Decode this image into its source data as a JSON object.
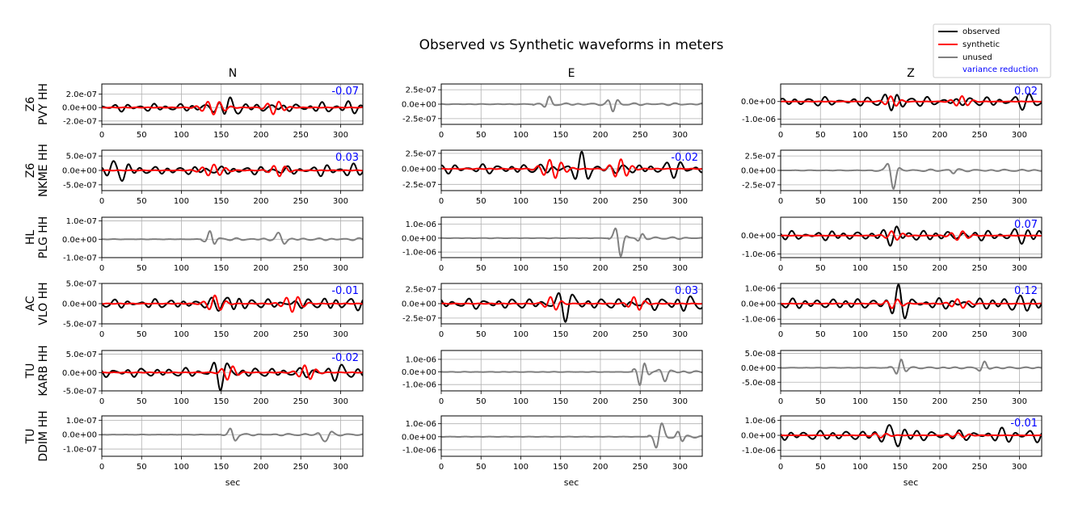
{
  "chart_data": {
    "type": "line",
    "title": "Observed vs Synthetic waveforms in meters",
    "xlabel": "sec",
    "xlim": [
      0,
      328
    ],
    "xticks": [
      "0",
      "50",
      "100",
      "150",
      "200",
      "250",
      "300"
    ],
    "columns": [
      "N",
      "E",
      "Z"
    ],
    "grid": true,
    "legend": {
      "placement": "top-right",
      "entries": [
        {
          "label": "observed",
          "color": "#000000"
        },
        {
          "label": "synthetic",
          "color": "#ff0000"
        },
        {
          "label": "unused",
          "color": "#808080"
        },
        {
          "label": "variance reduction",
          "color": "#0000ff"
        }
      ]
    },
    "colors": {
      "observed": "#000000",
      "synthetic": "#ff0000",
      "unused": "#808080",
      "vr": "#0000ff",
      "grid": "#b0b0b0"
    },
    "rows": [
      {
        "label1": "Z6",
        "label2": "PVY HH"
      },
      {
        "label1": "Z6",
        "label2": "NKME HH"
      },
      {
        "label1": "HL",
        "label2": "PLG HH"
      },
      {
        "label1": "AC",
        "label2": "VLO HH"
      },
      {
        "label1": "TU",
        "label2": "KARB HH"
      },
      {
        "label1": "TU",
        "label2": "DDIM HH"
      }
    ],
    "panels": [
      [
        {
          "used": true,
          "vr": "-0.07",
          "ylim": [
            -2.5e-07,
            3.5e-07
          ],
          "yticks": [
            2e-07,
            0,
            -2e-07
          ],
          "yticklabels": [
            "2.0e-07",
            "0.0e+00",
            "-2.0e-07"
          ],
          "onset": 0,
          "amp": 2e-07,
          "burst": 160,
          "syn_amp": 1e-07,
          "syn_windows": [
            [
              110,
              170
            ],
            [
              195,
              240
            ]
          ]
        },
        {
          "used": true,
          "vr": "0.03",
          "ylim": [
            -7e-07,
            7e-07
          ],
          "yticks": [
            5e-07,
            0,
            -5e-07
          ],
          "yticklabels": [
            "5.0e-07",
            "0.0e+00",
            "-5.0e-07"
          ],
          "onset": 0,
          "amp": 5e-07,
          "burst": 20,
          "syn_amp": 2e-07,
          "syn_windows": [
            [
              110,
              170
            ],
            [
              200,
              245
            ]
          ]
        },
        {
          "used": false,
          "ylim": [
            -1e-07,
            1.2e-07
          ],
          "yticks": [
            1e-07,
            0,
            -1e-07
          ],
          "yticklabels": [
            "1.0e-07",
            "0.0e+00",
            "-1.0e-07"
          ],
          "onset": 125,
          "amp": 1.2e-07,
          "burst": 140,
          "burst2": 225
        },
        {
          "used": true,
          "vr": "-0.01",
          "ylim": [
            -5e-07,
            5e-07
          ],
          "yticks": [
            5e-07,
            0,
            -5e-07
          ],
          "yticklabels": [
            "5.0e-07",
            "0.0e+00",
            "-5.0e-07"
          ],
          "onset": 0,
          "amp": 4e-07,
          "burst": 160,
          "syn_amp": 2e-07,
          "syn_windows": [
            [
              120,
              165
            ],
            [
              215,
              265
            ]
          ]
        },
        {
          "used": true,
          "vr": "-0.02",
          "ylim": [
            -5e-07,
            6e-07
          ],
          "yticks": [
            5e-07,
            0,
            -5e-07
          ],
          "yticklabels": [
            "5.0e-07",
            "0.0e+00",
            "-5.0e-07"
          ],
          "onset": 0,
          "amp": 4.5e-07,
          "burst": 150,
          "syn_amp": 2e-07,
          "syn_windows": [
            [
              140,
              180
            ],
            [
              235,
              280
            ]
          ]
        },
        {
          "used": false,
          "ylim": [
            -1.5e-07,
            1.3e-07
          ],
          "yticks": [
            1e-07,
            0,
            -1e-07
          ],
          "yticklabels": [
            "1.0e-07",
            "0.0e+00",
            "-1.0e-07"
          ],
          "onset": 150,
          "amp": 1.3e-07,
          "burst": 280,
          "burst2": 165
        }
      ],
      [
        {
          "used": false,
          "ylim": [
            -3.5e-07,
            3.5e-07
          ],
          "yticks": [
            2.5e-07,
            0,
            -2.5e-07
          ],
          "yticklabels": [
            "2.5e-07",
            "0.0e+00",
            "-2.5e-07"
          ],
          "onset": 115,
          "amp": 3.5e-07,
          "burst": 218,
          "burst2": 135
        },
        {
          "used": true,
          "vr": "-0.02",
          "ylim": [
            -3.5e-07,
            3e-07
          ],
          "yticks": [
            2.5e-07,
            0,
            -2.5e-07
          ],
          "yticklabels": [
            "2.5e-07",
            "0.0e+00",
            "-2.5e-07"
          ],
          "onset": 0,
          "amp": 2.7e-07,
          "burst": 180,
          "syn_amp": 1.5e-07,
          "syn_windows": [
            [
              110,
              170
            ],
            [
              200,
              250
            ]
          ]
        },
        {
          "used": false,
          "ylim": [
            -1.4e-06,
            1.5e-06
          ],
          "yticks": [
            1e-06,
            0,
            -1e-06
          ],
          "yticklabels": [
            "1.0e-06",
            "0.0e+00",
            "-1.0e-06"
          ],
          "onset": 210,
          "amp": 1.5e-06,
          "burst": 225,
          "burst2": 250
        },
        {
          "used": true,
          "vr": "0.03",
          "ylim": [
            -3.5e-07,
            3.5e-07
          ],
          "yticks": [
            2.5e-07,
            0,
            -2.5e-07
          ],
          "yticklabels": [
            "2.5e-07",
            "0.0e+00",
            "-2.5e-07"
          ],
          "onset": 0,
          "amp": 3.2e-07,
          "burst": 160,
          "syn_amp": 1.2e-07,
          "syn_windows": [
            [
              120,
              160
            ],
            [
              225,
              265
            ]
          ]
        },
        {
          "used": false,
          "ylim": [
            -1.5e-06,
            1.7e-06
          ],
          "yticks": [
            1e-06,
            0,
            -1e-06
          ],
          "yticklabels": [
            "1.0e-06",
            "0.0e+00",
            "-1.0e-06"
          ],
          "onset": 240,
          "amp": 1.7e-06,
          "burst": 253,
          "burst2": 280
        },
        {
          "used": false,
          "ylim": [
            -1.5e-06,
            1.6e-06
          ],
          "yticks": [
            1e-06,
            0,
            -1e-06
          ],
          "yticklabels": [
            "1.0e-06",
            "0.0e+00",
            "-1.0e-06"
          ],
          "onset": 260,
          "amp": 1.6e-06,
          "burst": 275,
          "burst2": 300
        }
      ],
      [
        {
          "used": true,
          "vr": "0.02",
          "ylim": [
            -1.3e-06,
            1e-06
          ],
          "yticks": [
            0,
            -1e-06
          ],
          "yticklabels": [
            "0.0e+00",
            "-1.0e-06"
          ],
          "onset": 0,
          "amp": 9e-07,
          "burst": 145,
          "syn_amp": 3e-07,
          "syn_windows": [
            [
              120,
              160
            ],
            [
              205,
              250
            ]
          ]
        },
        {
          "used": false,
          "ylim": [
            -3.5e-07,
            3.5e-07
          ],
          "yticks": [
            2.5e-07,
            0,
            -2.5e-07
          ],
          "yticklabels": [
            "2.5e-07",
            "0.0e+00",
            "-2.5e-07"
          ],
          "onset": 115,
          "amp": 3.5e-07,
          "burst": 140,
          "burst2": 215
        },
        {
          "used": true,
          "vr": "0.07",
          "ylim": [
            -1.2e-06,
            1e-06
          ],
          "yticks": [
            0,
            -1e-06
          ],
          "yticklabels": [
            "0.0e+00",
            "-1.0e-06"
          ],
          "onset": 0,
          "amp": 9e-07,
          "burst": 150,
          "syn_amp": 2.5e-07,
          "syn_windows": [
            [
              120,
              165
            ],
            [
              200,
              250
            ]
          ]
        },
        {
          "used": true,
          "vr": "0.12",
          "ylim": [
            -1.3e-06,
            1.3e-06
          ],
          "yticks": [
            1e-06,
            0,
            -1e-06
          ],
          "yticklabels": [
            "1.0e-06",
            "0.0e+00",
            "-1.0e-06"
          ],
          "onset": 0,
          "amp": 1.2e-06,
          "burst": 150,
          "syn_amp": 3e-07,
          "syn_windows": [
            [
              120,
              165
            ],
            [
              200,
              250
            ]
          ]
        },
        {
          "used": false,
          "ylim": [
            -8e-08,
            6e-08
          ],
          "yticks": [
            5e-08,
            0,
            -5e-08
          ],
          "yticklabels": [
            "5.0e-08",
            "0.0e+00",
            "-5.0e-08"
          ],
          "onset": 135,
          "amp": 6e-08,
          "burst": 150,
          "burst2": 255
        },
        {
          "used": true,
          "vr": "-0.01",
          "ylim": [
            -1.4e-06,
            1.3e-06
          ],
          "yticks": [
            1e-06,
            0,
            -1e-06
          ],
          "yticklabels": [
            "1.0e-06",
            "0.0e+00",
            "-1.0e-06"
          ],
          "onset": 0,
          "amp": 1.2e-06,
          "burst": 145,
          "syn_amp": 1.5e-07,
          "syn_windows": [
            [
              100,
              150
            ],
            [
              200,
              250
            ]
          ]
        }
      ]
    ]
  }
}
